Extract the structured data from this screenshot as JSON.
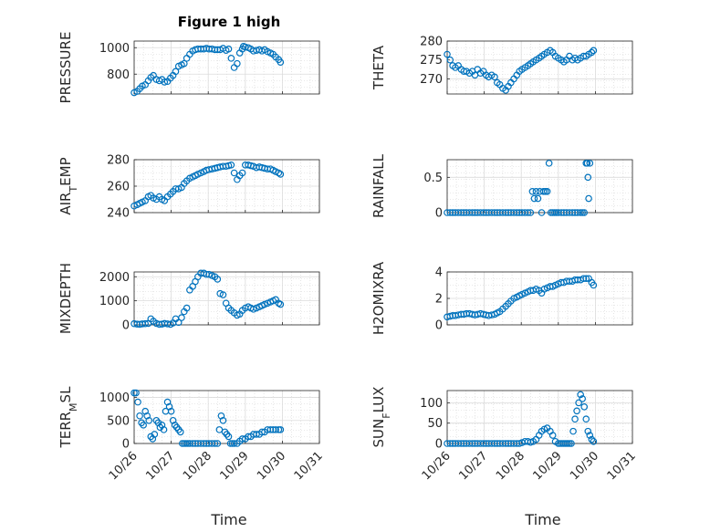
{
  "figure_title": "Figure 1 high",
  "x_axis_label": "Time",
  "x_tick_labels": [
    "10/26",
    "10/27",
    "10/28",
    "10/29",
    "10/30",
    "10/31"
  ],
  "marker_color": "#0072BD",
  "chart_data": [
    {
      "type": "scatter",
      "ylabel": "PRESSURE",
      "ylim": [
        650,
        1050
      ],
      "yticks": [
        800,
        1000
      ],
      "xlim": [
        0,
        5
      ],
      "grid": "on",
      "marker": "open-circle",
      "x": [
        0.0,
        0.08,
        0.15,
        0.22,
        0.3,
        0.38,
        0.45,
        0.52,
        0.6,
        0.68,
        0.75,
        0.82,
        0.9,
        0.98,
        1.05,
        1.12,
        1.2,
        1.28,
        1.35,
        1.42,
        1.5,
        1.58,
        1.65,
        1.72,
        1.8,
        1.88,
        1.95,
        2.02,
        2.1,
        2.18,
        2.25,
        2.32,
        2.4,
        2.48,
        2.55,
        2.62,
        2.7,
        2.78,
        2.85,
        2.92,
        2.95,
        3.0,
        3.08,
        3.15,
        3.22,
        3.3,
        3.38,
        3.45,
        3.52,
        3.6,
        3.68,
        3.75,
        3.82,
        3.9,
        3.95
      ],
      "y": [
        660,
        670,
        690,
        710,
        720,
        750,
        775,
        790,
        760,
        750,
        760,
        740,
        745,
        770,
        790,
        820,
        860,
        870,
        880,
        920,
        950,
        975,
        985,
        990,
        990,
        990,
        995,
        990,
        990,
        985,
        985,
        985,
        995,
        980,
        990,
        920,
        850,
        880,
        960,
        990,
        1010,
        1005,
        1000,
        990,
        975,
        980,
        985,
        975,
        985,
        970,
        960,
        950,
        930,
        910,
        890
      ]
    },
    {
      "type": "scatter",
      "ylabel": "THETA",
      "ylim": [
        266,
        280
      ],
      "yticks": [
        270,
        275,
        280
      ],
      "xlim": [
        0,
        5
      ],
      "grid": "on",
      "marker": "open-circle",
      "x": [
        0.0,
        0.08,
        0.15,
        0.22,
        0.3,
        0.38,
        0.45,
        0.52,
        0.6,
        0.68,
        0.75,
        0.82,
        0.9,
        0.98,
        1.05,
        1.12,
        1.2,
        1.28,
        1.35,
        1.42,
        1.5,
        1.58,
        1.65,
        1.72,
        1.8,
        1.88,
        1.95,
        2.02,
        2.1,
        2.18,
        2.25,
        2.32,
        2.4,
        2.48,
        2.55,
        2.62,
        2.7,
        2.78,
        2.85,
        2.92,
        3.0,
        3.08,
        3.15,
        3.22,
        3.3,
        3.38,
        3.45,
        3.52,
        3.6,
        3.68,
        3.75,
        3.82,
        3.9,
        3.95
      ],
      "y": [
        276.5,
        275,
        273.5,
        273,
        273.5,
        272.5,
        272,
        272,
        271.5,
        272,
        271,
        272.5,
        271.5,
        272,
        271,
        270.5,
        271,
        270.5,
        269,
        268.5,
        267.5,
        267,
        268,
        269,
        270,
        271,
        272,
        272.5,
        273,
        273.5,
        274,
        274.5,
        275,
        275.5,
        276,
        276.5,
        277,
        277.5,
        277,
        276,
        275.5,
        275,
        274.5,
        275,
        276,
        275,
        275.5,
        275,
        275.5,
        276,
        276,
        276.5,
        277,
        277.5
      ]
    },
    {
      "type": "scatter",
      "ylabel": "AIR_TEMP",
      "ylim": [
        240,
        280
      ],
      "yticks": [
        240,
        260,
        280
      ],
      "xlim": [
        0,
        5
      ],
      "grid": "on",
      "marker": "open-circle",
      "x": [
        0.0,
        0.08,
        0.15,
        0.22,
        0.3,
        0.38,
        0.45,
        0.52,
        0.6,
        0.68,
        0.75,
        0.82,
        0.9,
        0.98,
        1.05,
        1.12,
        1.2,
        1.28,
        1.35,
        1.42,
        1.5,
        1.58,
        1.65,
        1.72,
        1.8,
        1.88,
        1.95,
        2.02,
        2.1,
        2.18,
        2.25,
        2.32,
        2.4,
        2.48,
        2.55,
        2.62,
        2.7,
        2.78,
        2.85,
        2.92,
        3.0,
        3.08,
        3.15,
        3.22,
        3.3,
        3.38,
        3.45,
        3.52,
        3.6,
        3.68,
        3.75,
        3.82,
        3.9,
        3.95
      ],
      "y": [
        245,
        246,
        247,
        248,
        249,
        252,
        253,
        251,
        250,
        252,
        250,
        249,
        252,
        254,
        256,
        258,
        258,
        259,
        262,
        264,
        266,
        267,
        268,
        269,
        270,
        271,
        272,
        272.5,
        273,
        273.5,
        274,
        274.5,
        275,
        275,
        275.5,
        276,
        270,
        265,
        268,
        270,
        276,
        276,
        275.5,
        275,
        274,
        274.5,
        274,
        273.5,
        273,
        273,
        272,
        271,
        270,
        269
      ]
    },
    {
      "type": "scatter",
      "ylabel": "RAINFALL",
      "ylim": [
        0,
        0.75
      ],
      "yticks": [
        0,
        0.5
      ],
      "xlim": [
        0,
        5
      ],
      "grid": "on",
      "marker": "open-circle",
      "x": [
        0.0,
        0.08,
        0.15,
        0.22,
        0.3,
        0.38,
        0.45,
        0.52,
        0.6,
        0.68,
        0.75,
        0.82,
        0.9,
        0.98,
        1.05,
        1.12,
        1.2,
        1.28,
        1.35,
        1.42,
        1.5,
        1.58,
        1.65,
        1.72,
        1.8,
        1.88,
        1.95,
        2.02,
        2.1,
        2.18,
        2.25,
        2.3,
        2.35,
        2.4,
        2.45,
        2.5,
        2.55,
        2.6,
        2.65,
        2.7,
        2.75,
        2.8,
        2.85,
        2.9,
        2.95,
        3.0,
        3.08,
        3.15,
        3.22,
        3.3,
        3.38,
        3.45,
        3.52,
        3.6,
        3.65,
        3.7,
        3.75,
        3.78,
        3.8,
        3.82,
        3.85
      ],
      "y": [
        0,
        0,
        0,
        0,
        0,
        0,
        0,
        0,
        0,
        0,
        0,
        0,
        0,
        0,
        0,
        0,
        0,
        0,
        0,
        0,
        0,
        0,
        0,
        0,
        0,
        0,
        0,
        0,
        0,
        0,
        0,
        0.3,
        0.2,
        0.3,
        0.2,
        0.3,
        0,
        0.3,
        0.3,
        0.3,
        0.7,
        0,
        0,
        0,
        0,
        0,
        0,
        0,
        0,
        0,
        0,
        0,
        0,
        0,
        0,
        0,
        0.7,
        0.7,
        0.5,
        0.2,
        0.7
      ]
    },
    {
      "type": "scatter",
      "ylabel": "MIXDEPTH",
      "ylim": [
        0,
        2200
      ],
      "yticks": [
        0,
        1000,
        2000
      ],
      "xlim": [
        0,
        5
      ],
      "grid": "on",
      "marker": "open-circle",
      "x": [
        0.0,
        0.08,
        0.15,
        0.22,
        0.3,
        0.38,
        0.45,
        0.52,
        0.6,
        0.68,
        0.75,
        0.82,
        0.9,
        0.98,
        1.05,
        1.12,
        1.2,
        1.28,
        1.35,
        1.42,
        1.5,
        1.58,
        1.65,
        1.72,
        1.8,
        1.88,
        1.95,
        2.02,
        2.1,
        2.18,
        2.25,
        2.32,
        2.4,
        2.48,
        2.55,
        2.62,
        2.7,
        2.78,
        2.85,
        2.92,
        3.0,
        3.08,
        3.15,
        3.22,
        3.3,
        3.38,
        3.45,
        3.52,
        3.6,
        3.68,
        3.75,
        3.82,
        3.9,
        3.95
      ],
      "y": [
        50,
        30,
        20,
        40,
        50,
        60,
        250,
        150,
        60,
        20,
        30,
        60,
        40,
        20,
        80,
        250,
        100,
        300,
        550,
        700,
        1450,
        1600,
        1800,
        2000,
        2150,
        2150,
        2100,
        2100,
        2050,
        2000,
        1900,
        1300,
        1250,
        900,
        700,
        600,
        500,
        400,
        450,
        600,
        700,
        750,
        700,
        650,
        700,
        750,
        800,
        850,
        900,
        950,
        1000,
        1050,
        900,
        850
      ]
    },
    {
      "type": "scatter",
      "ylabel": "H2OMIXRA",
      "ylim": [
        0,
        4
      ],
      "yticks": [
        0,
        2,
        4
      ],
      "xlim": [
        0,
        5
      ],
      "grid": "on",
      "marker": "open-circle",
      "x": [
        0.0,
        0.08,
        0.15,
        0.22,
        0.3,
        0.38,
        0.45,
        0.52,
        0.6,
        0.68,
        0.75,
        0.82,
        0.9,
        0.98,
        1.05,
        1.12,
        1.2,
        1.28,
        1.35,
        1.42,
        1.5,
        1.58,
        1.65,
        1.72,
        1.8,
        1.88,
        1.95,
        2.02,
        2.1,
        2.18,
        2.25,
        2.32,
        2.4,
        2.48,
        2.55,
        2.62,
        2.7,
        2.78,
        2.85,
        2.92,
        3.0,
        3.08,
        3.15,
        3.22,
        3.3,
        3.38,
        3.45,
        3.52,
        3.6,
        3.68,
        3.75,
        3.82,
        3.9,
        3.95
      ],
      "y": [
        0.6,
        0.65,
        0.7,
        0.7,
        0.75,
        0.8,
        0.8,
        0.85,
        0.85,
        0.8,
        0.75,
        0.8,
        0.85,
        0.8,
        0.75,
        0.7,
        0.75,
        0.8,
        0.9,
        1.0,
        1.2,
        1.4,
        1.6,
        1.8,
        2.0,
        2.1,
        2.2,
        2.3,
        2.4,
        2.5,
        2.6,
        2.6,
        2.7,
        2.6,
        2.4,
        2.7,
        2.8,
        2.9,
        2.9,
        3.0,
        3.1,
        3.2,
        3.2,
        3.3,
        3.3,
        3.3,
        3.4,
        3.4,
        3.4,
        3.5,
        3.5,
        3.5,
        3.2,
        3.0
      ]
    },
    {
      "type": "scatter",
      "ylabel": "TERR_MSL",
      "ylim": [
        0,
        1150
      ],
      "yticks": [
        0,
        500,
        1000
      ],
      "xlim": [
        0,
        5
      ],
      "grid": "on",
      "marker": "open-circle",
      "x": [
        0.0,
        0.05,
        0.1,
        0.15,
        0.2,
        0.25,
        0.3,
        0.35,
        0.4,
        0.45,
        0.5,
        0.55,
        0.6,
        0.65,
        0.7,
        0.75,
        0.8,
        0.85,
        0.9,
        0.95,
        1.0,
        1.05,
        1.1,
        1.15,
        1.2,
        1.25,
        1.3,
        1.35,
        1.4,
        1.45,
        1.5,
        1.58,
        1.65,
        1.72,
        1.8,
        1.88,
        1.95,
        2.02,
        2.1,
        2.18,
        2.25,
        2.3,
        2.35,
        2.4,
        2.45,
        2.5,
        2.55,
        2.6,
        2.65,
        2.7,
        2.78,
        2.85,
        2.92,
        3.0,
        3.08,
        3.15,
        3.22,
        3.3,
        3.38,
        3.45,
        3.52,
        3.6,
        3.68,
        3.75,
        3.82,
        3.9,
        3.95
      ],
      "y": [
        1100,
        1100,
        900,
        600,
        450,
        400,
        700,
        600,
        500,
        150,
        100,
        200,
        500,
        450,
        350,
        400,
        300,
        700,
        900,
        800,
        700,
        500,
        400,
        350,
        300,
        250,
        0,
        0,
        0,
        0,
        0,
        0,
        0,
        0,
        0,
        0,
        0,
        0,
        0,
        0,
        0,
        300,
        600,
        500,
        250,
        200,
        150,
        0,
        0,
        0,
        0,
        50,
        100,
        100,
        150,
        150,
        200,
        200,
        200,
        250,
        250,
        300,
        300,
        300,
        300,
        300,
        300
      ]
    },
    {
      "type": "scatter",
      "ylabel": "SUN_FLUX",
      "ylim": [
        0,
        130
      ],
      "yticks": [
        0,
        50,
        100
      ],
      "xlim": [
        0,
        5
      ],
      "grid": "on",
      "marker": "open-circle",
      "x": [
        0.0,
        0.08,
        0.15,
        0.22,
        0.3,
        0.38,
        0.45,
        0.52,
        0.6,
        0.68,
        0.75,
        0.82,
        0.9,
        0.98,
        1.05,
        1.12,
        1.2,
        1.28,
        1.35,
        1.42,
        1.5,
        1.58,
        1.65,
        1.72,
        1.8,
        1.88,
        1.95,
        2.02,
        2.1,
        2.18,
        2.25,
        2.32,
        2.4,
        2.48,
        2.55,
        2.62,
        2.7,
        2.78,
        2.85,
        2.92,
        3.0,
        3.05,
        3.1,
        3.15,
        3.2,
        3.25,
        3.3,
        3.35,
        3.4,
        3.45,
        3.5,
        3.55,
        3.6,
        3.65,
        3.7,
        3.75,
        3.8,
        3.85,
        3.9,
        3.95
      ],
      "y": [
        0,
        0,
        0,
        0,
        0,
        0,
        0,
        0,
        0,
        0,
        0,
        0,
        0,
        0,
        0,
        0,
        0,
        0,
        0,
        0,
        0,
        0,
        0,
        0,
        0,
        0,
        0,
        2,
        5,
        5,
        3,
        5,
        10,
        20,
        30,
        35,
        38,
        30,
        20,
        5,
        0,
        0,
        0,
        0,
        0,
        0,
        0,
        0,
        30,
        60,
        80,
        100,
        120,
        110,
        90,
        60,
        30,
        20,
        10,
        5
      ]
    }
  ]
}
